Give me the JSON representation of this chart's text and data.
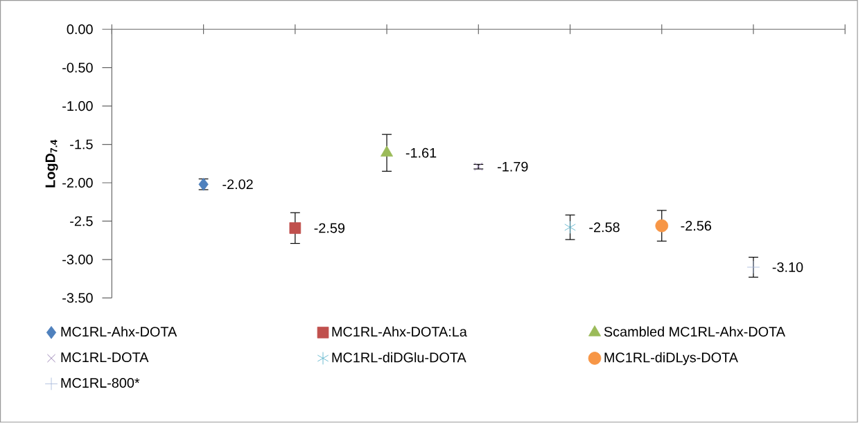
{
  "chart_data": {
    "type": "scatter",
    "ylabel": "**LogD$_{7.4}$**",
    "categories": [
      null,
      null,
      null,
      null,
      null,
      null,
      null
    ],
    "ylim": [
      -3.5,
      0
    ],
    "yticks": [
      {
        "value": 0,
        "label": "0.00"
      },
      {
        "value": -0.5,
        "label": "-0.50"
      },
      {
        "value": -1,
        "label": "-1.00"
      },
      {
        "value": -1.5,
        "label": "-1.5"
      },
      {
        "value": -2,
        "label": "-2.00"
      },
      {
        "value": -2.5,
        "label": "-2.5"
      },
      {
        "value": -3,
        "label": "-3.00"
      },
      {
        "value": -3.5,
        "label": "-3.50"
      }
    ],
    "tick_labels": "y",
    "legend": "bottom",
    "series": [
      {
        "name": "MC1RL-Ahx-DOTA",
        "color": "#4f81bd",
        "marker": "diamond",
        "values": [
          -2.02,
          null,
          null,
          null,
          null,
          null,
          null
        ],
        "errors": [
          0.07,
          null,
          null,
          null,
          null,
          null,
          null
        ],
        "value_labels": [
          "-2.02",
          null,
          null,
          null,
          null,
          null,
          null
        ]
      },
      {
        "name": "MC1RL-Ahx-DOTA:La",
        "color": "#c0504d",
        "marker": "square",
        "values": [
          null,
          -2.59,
          null,
          null,
          null,
          null,
          null
        ],
        "errors": [
          null,
          0.2,
          null,
          null,
          null,
          null,
          null
        ],
        "value_labels": [
          null,
          "-2.59",
          null,
          null,
          null,
          null,
          null
        ]
      },
      {
        "name": "Scambled MC1RL-Ahx-DOTA",
        "color": "#9bbb59",
        "marker": "triangle",
        "values": [
          null,
          null,
          -1.61,
          null,
          null,
          null,
          null
        ],
        "errors": [
          null,
          null,
          0.24,
          null,
          null,
          null,
          null
        ],
        "value_labels": [
          null,
          null,
          "-1.61",
          null,
          null,
          null,
          null
        ]
      },
      {
        "name": "MC1RL-DOTA",
        "color": "#8064a2",
        "marker": "cross",
        "values": [
          null,
          null,
          null,
          -1.79,
          null,
          null,
          null
        ],
        "errors": [
          null,
          null,
          null,
          0.03,
          null,
          null,
          null
        ],
        "value_labels": [
          null,
          null,
          null,
          "-1.79",
          null,
          null,
          null
        ]
      },
      {
        "name": "MC1RL-diDGlu-DOTA",
        "color": "#4bacc6",
        "values": [
          null,
          null,
          null,
          null,
          -2.58,
          null,
          null
        ],
        "errors": [
          null,
          null,
          null,
          null,
          0.16,
          null,
          null
        ],
        "value_labels": [
          null,
          null,
          null,
          null,
          "-2.58",
          null,
          null
        ]
      },
      {
        "name": "MC1RL-diDLys-DOTA",
        "color": "#f79646",
        "marker": "circle",
        "values": [
          null,
          null,
          null,
          null,
          null,
          -2.56,
          null
        ],
        "errors": [
          null,
          null,
          null,
          null,
          null,
          0.2,
          null
        ],
        "value_labels": [
          null,
          null,
          null,
          null,
          null,
          "-2.56",
          null
        ]
      },
      {
        "name": "MC1RL-800*",
        "color": "#a2b5d9",
        "marker": "plus",
        "values": [
          null,
          null,
          null,
          null,
          null,
          null,
          -3.1
        ],
        "errors": [
          null,
          null,
          null,
          null,
          null,
          null,
          0.13
        ],
        "value_labels": [
          null,
          null,
          null,
          null,
          null,
          null,
          "-3.10"
        ]
      }
    ]
  }
}
